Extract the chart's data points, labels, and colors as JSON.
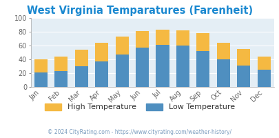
{
  "title": "West Virginia Temparatures (Farenheit)",
  "months": [
    "Jan",
    "Feb",
    "Mar",
    "Apr",
    "May",
    "Jun",
    "Jul",
    "Aug",
    "Sep",
    "Oct",
    "Nov",
    "Dec"
  ],
  "low_temps": [
    21,
    23,
    30,
    37,
    47,
    57,
    61,
    60,
    52,
    40,
    31,
    25
  ],
  "high_temps": [
    40,
    44,
    54,
    64,
    73,
    81,
    83,
    82,
    78,
    64,
    55,
    44
  ],
  "low_color": "#4f8fc0",
  "high_color": "#f5b942",
  "title_color": "#1a88d0",
  "axis_bg_color": "#e4eef5",
  "fig_bg_color": "#ffffff",
  "ylabel_max": 100,
  "yticks": [
    0,
    20,
    40,
    60,
    80,
    100
  ],
  "legend_high": "High Temperature",
  "legend_low": "Low Temperature",
  "footer": "© 2024 CityRating.com - https://www.cityrating.com/weather-history/",
  "footer_color": "#7a9cbe",
  "title_fontsize": 10.5,
  "tick_fontsize": 7,
  "legend_fontsize": 8,
  "footer_fontsize": 5.5
}
